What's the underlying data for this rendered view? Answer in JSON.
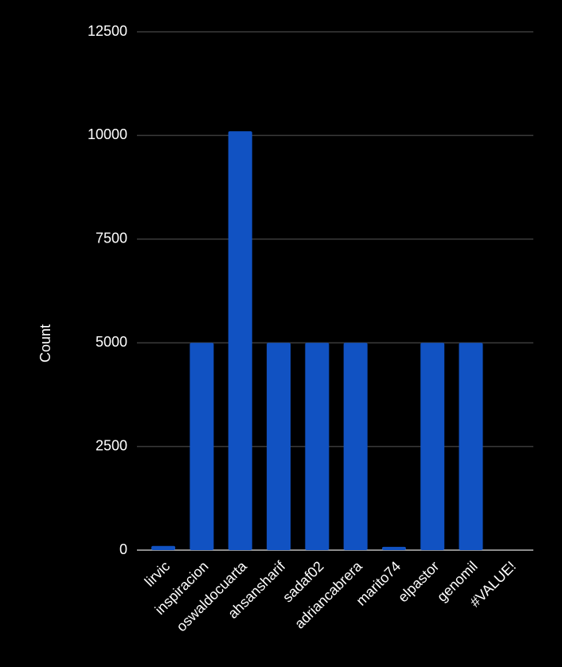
{
  "chart_data": {
    "type": "bar",
    "y_label": "Count",
    "categories": [
      "lirvic",
      "inspiracion",
      "oswaldocuarta",
      "ahsansharif",
      "sadaf02",
      "adriancabrera",
      "marito74",
      "elpastor",
      "genomil",
      "#VALUE!"
    ],
    "values": [
      100,
      5000,
      10100,
      5000,
      5000,
      5000,
      80,
      5000,
      5000,
      0
    ],
    "color": "#1152c2",
    "ylim": [
      0,
      12500
    ],
    "yticks": [
      0,
      2500,
      5000,
      7500,
      10000,
      12500
    ],
    "grid": true
  }
}
